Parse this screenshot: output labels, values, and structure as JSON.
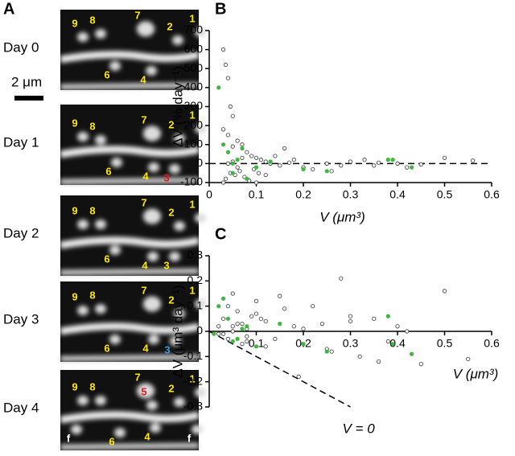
{
  "panel_a": {
    "label": "A",
    "scale_bar": "2 μm",
    "days": [
      {
        "label": "Day 0",
        "spines": [
          {
            "text": "9",
            "color": "#ffe600"
          },
          {
            "text": "8",
            "color": "#ffe600"
          },
          {
            "text": "7",
            "color": "#ffe600"
          },
          {
            "text": "2",
            "color": "#ffe600"
          },
          {
            "text": "1",
            "color": "#ffe600"
          },
          {
            "text": "6",
            "color": "#ffe600"
          },
          {
            "text": "4",
            "color": "#ffe600"
          }
        ]
      },
      {
        "label": "Day 1",
        "spines": [
          {
            "text": "9",
            "color": "#ffe600"
          },
          {
            "text": "8",
            "color": "#ffe600"
          },
          {
            "text": "7",
            "color": "#ffe600"
          },
          {
            "text": "2",
            "color": "#ffe600"
          },
          {
            "text": "1",
            "color": "#ffe600"
          },
          {
            "text": "6",
            "color": "#ffe600"
          },
          {
            "text": "4",
            "color": "#ffe600"
          },
          {
            "text": "3",
            "color": "#e8151b"
          }
        ]
      },
      {
        "label": "Day 2",
        "spines": [
          {
            "text": "9",
            "color": "#ffe600"
          },
          {
            "text": "8",
            "color": "#ffe600"
          },
          {
            "text": "7",
            "color": "#ffe600"
          },
          {
            "text": "2",
            "color": "#ffe600"
          },
          {
            "text": "1",
            "color": "#ffe600"
          },
          {
            "text": "6",
            "color": "#ffe600"
          },
          {
            "text": "4",
            "color": "#ffe600"
          },
          {
            "text": "3",
            "color": "#ffe600"
          }
        ]
      },
      {
        "label": "Day 3",
        "spines": [
          {
            "text": "9",
            "color": "#ffe600"
          },
          {
            "text": "8",
            "color": "#ffe600"
          },
          {
            "text": "7",
            "color": "#ffe600"
          },
          {
            "text": "2",
            "color": "#ffe600"
          },
          {
            "text": "1",
            "color": "#ffe600"
          },
          {
            "text": "6",
            "color": "#ffe600"
          },
          {
            "text": "4",
            "color": "#ffe600"
          },
          {
            "text": "3",
            "color": "#3d9be9"
          }
        ]
      },
      {
        "label": "Day 4",
        "spines": [
          {
            "text": "9",
            "color": "#ffe600"
          },
          {
            "text": "8",
            "color": "#ffe600"
          },
          {
            "text": "7",
            "color": "#ffe600"
          },
          {
            "text": "2",
            "color": "#ffe600"
          },
          {
            "text": "1",
            "color": "#ffe600"
          },
          {
            "text": "6",
            "color": "#ffe600"
          },
          {
            "text": "4",
            "color": "#ffe600"
          },
          {
            "text": "5",
            "color": "#e8151b"
          },
          {
            "text": "f",
            "color": "#ffffff"
          },
          {
            "text": "f",
            "color": "#ffffff"
          }
        ]
      }
    ]
  },
  "chart_data": [
    {
      "type": "scatter",
      "label": "B",
      "xlabel": "V (μm³)",
      "ylabel": "ΔV (% day⁻¹)",
      "xlim": [
        0,
        0.6
      ],
      "ylim": [
        -100,
        700
      ],
      "xticks": [
        0,
        0.1,
        0.2,
        0.3,
        0.4,
        0.5,
        0.6
      ],
      "yticks": [
        -100,
        0,
        100,
        200,
        300,
        400,
        500,
        600,
        700
      ],
      "series": [
        {
          "color": "#333333",
          "x": [
            0.03,
            0.035,
            0.04,
            0.045,
            0.05,
            0.03,
            0.04,
            0.06,
            0.07,
            0.05,
            0.08,
            0.09,
            0.1,
            0.11,
            0.12,
            0.13,
            0.15,
            0.17,
            0.2,
            0.22,
            0.25,
            0.28,
            0.3,
            0.33,
            0.36,
            0.4,
            0.45,
            0.5,
            0.56,
            0.035,
            0.045,
            0.055,
            0.065,
            0.075,
            0.085,
            0.095,
            0.105,
            0.14,
            0.16,
            0.18,
            0.04,
            0.05,
            0.06,
            0.07,
            0.03,
            0.1,
            0.12,
            0.26,
            0.35,
            0.42
          ],
          "values": [
            600,
            520,
            450,
            300,
            250,
            180,
            150,
            120,
            100,
            90,
            60,
            40,
            30,
            20,
            10,
            0,
            -10,
            5,
            -20,
            -30,
            0,
            -10,
            10,
            20,
            5,
            0,
            -5,
            30,
            15,
            -80,
            -50,
            -60,
            -40,
            -70,
            -90,
            -30,
            -50,
            40,
            80,
            20,
            0,
            10,
            -20,
            30,
            -100,
            -100,
            -60,
            -40,
            -10,
            -20
          ]
        },
        {
          "color": "#3cb83c",
          "x": [
            0.02,
            0.03,
            0.04,
            0.05,
            0.06,
            0.08,
            0.1,
            0.13,
            0.2,
            0.25,
            0.38,
            0.39,
            0.43,
            0.05,
            0.07
          ],
          "values": [
            400,
            100,
            60,
            -50,
            20,
            -80,
            -20,
            10,
            -30,
            -40,
            20,
            20,
            -20,
            0,
            80
          ]
        }
      ]
    },
    {
      "type": "scatter",
      "label": "C",
      "xlabel": "V (μm³)",
      "ylabel": "ΔV (μm³ day⁻¹)",
      "annotation": "V = 0",
      "xlim": [
        0,
        0.6
      ],
      "ylim": [
        -0.3,
        0.3
      ],
      "xticks": [
        0.1,
        0.2,
        0.3,
        0.4,
        0.5,
        0.6
      ],
      "yticks": [
        -0.3,
        -0.2,
        -0.1,
        0,
        0.1,
        0.2,
        0.3
      ],
      "series": [
        {
          "color": "#333333",
          "x": [
            0.02,
            0.03,
            0.04,
            0.05,
            0.06,
            0.07,
            0.08,
            0.09,
            0.1,
            0.12,
            0.14,
            0.16,
            0.18,
            0.2,
            0.22,
            0.24,
            0.26,
            0.28,
            0.3,
            0.32,
            0.35,
            0.38,
            0.4,
            0.45,
            0.5,
            0.55,
            0.03,
            0.04,
            0.05,
            0.06,
            0.07,
            0.08,
            0.1,
            0.12,
            0.15,
            0.2,
            0.25,
            0.3,
            0.36,
            0.42,
            0.02,
            0.05,
            0.08,
            0.11,
            0.19
          ],
          "values": [
            0.02,
            0.05,
            0.1,
            0.15,
            0.08,
            0.03,
            -0.02,
            0.06,
            0.12,
            0.04,
            -0.03,
            0.09,
            0.02,
            -0.05,
            0.1,
            0.03,
            -0.08,
            0.21,
            0.06,
            -0.1,
            0.05,
            -0.04,
            0.02,
            -0.13,
            0.16,
            -0.11,
            -0.01,
            -0.03,
            0,
            0.03,
            -0.05,
            0.01,
            0.07,
            -0.06,
            0.14,
            0.01,
            -0.07,
            0.04,
            -0.12,
            0,
            -0.01,
            0.02,
            -0.04,
            0.05,
            -0.18
          ]
        },
        {
          "color": "#3cb83c",
          "x": [
            0.02,
            0.03,
            0.04,
            0.06,
            0.08,
            0.1,
            0.15,
            0.2,
            0.25,
            0.38,
            0.39,
            0.43,
            0.05,
            0.07,
            0.01
          ],
          "values": [
            0.1,
            0.13,
            0.05,
            -0.03,
            0.02,
            -0.06,
            0.03,
            -0.05,
            -0.08,
            0.06,
            -0.05,
            -0.09,
            -0.04,
            0.01,
            -0.01
          ]
        }
      ]
    }
  ]
}
